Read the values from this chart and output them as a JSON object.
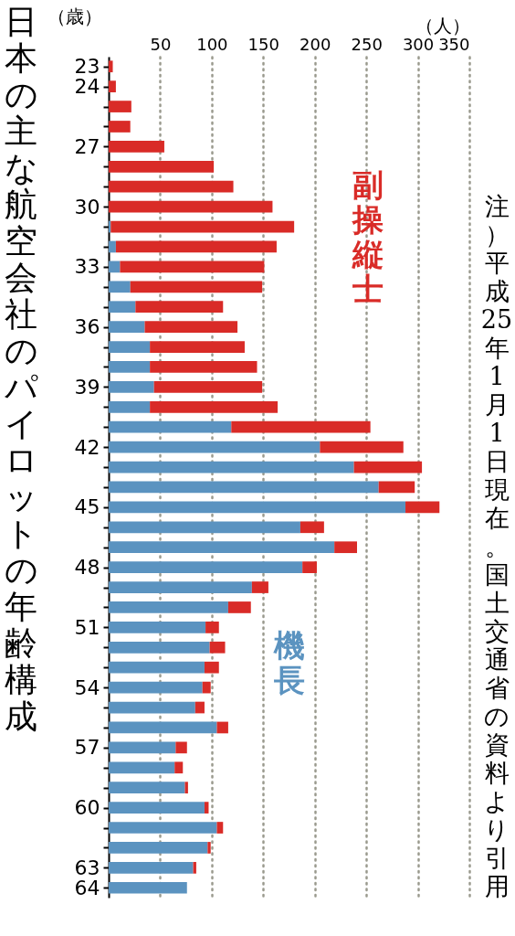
{
  "chart_data": {
    "type": "bar",
    "orientation": "horizontal",
    "stacked": true,
    "title": "日本の主な航空会社のパイロットの年齢構成",
    "xlabel": "（人）",
    "ylabel": "（歳）",
    "categories": [
      "23",
      "24",
      null,
      null,
      "27",
      null,
      null,
      "30",
      null,
      null,
      "33",
      null,
      null,
      "36",
      null,
      null,
      "39",
      null,
      null,
      "42",
      null,
      null,
      "45",
      null,
      null,
      "48",
      null,
      null,
      "51",
      null,
      null,
      "54",
      null,
      null,
      "57",
      null,
      null,
      "60",
      null,
      null,
      "63",
      "64"
    ],
    "series": [
      {
        "name": "機長",
        "color": "#5b93c0",
        "values": [
          0,
          0,
          0,
          0,
          0,
          0,
          0,
          0,
          2,
          7,
          11,
          21,
          26,
          35,
          40,
          40,
          44,
          40,
          119,
          205,
          238,
          262,
          288,
          186,
          219,
          188,
          139,
          116,
          94,
          98,
          93,
          91,
          84,
          105,
          65,
          64,
          74,
          93,
          105,
          96,
          82,
          76
        ]
      },
      {
        "name": "副操縦士",
        "color": "#d92b27",
        "values": [
          4,
          7,
          22,
          21,
          54,
          102,
          121,
          159,
          178,
          156,
          140,
          128,
          85,
          90,
          92,
          104,
          105,
          124,
          135,
          81,
          66,
          35,
          33,
          23,
          22,
          14,
          16,
          22,
          13,
          15,
          14,
          8,
          9,
          11,
          11,
          8,
          3,
          4,
          6,
          3,
          3,
          0
        ]
      }
    ],
    "xlim": [
      0,
      350
    ],
    "xticks": [
      50,
      100,
      150,
      200,
      250,
      300,
      350
    ],
    "grid": "x",
    "legend": false,
    "annotations": [
      "注）平成25年1月1日現在。国土交通省の資料より引用"
    ]
  }
}
